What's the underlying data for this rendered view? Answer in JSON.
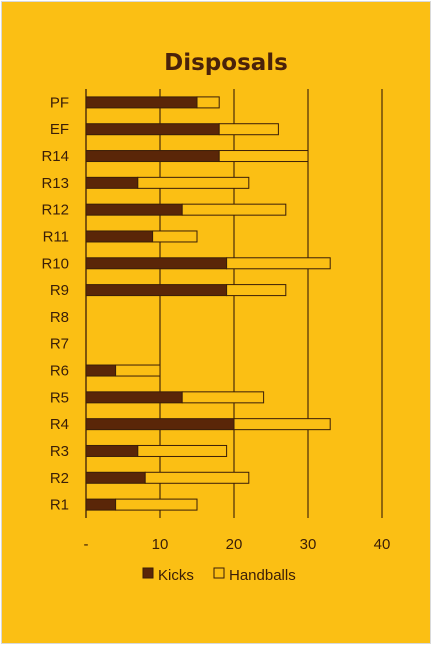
{
  "chart_data": {
    "type": "bar",
    "orientation": "horizontal",
    "stacked": true,
    "title": "Disposals",
    "categories": [
      "PF",
      "EF",
      "R14",
      "R13",
      "R12",
      "R11",
      "R10",
      "R9",
      "R8",
      "R7",
      "R6",
      "R5",
      "R4",
      "R3",
      "R2",
      "R1"
    ],
    "series": [
      {
        "name": "Kicks",
        "color": "#5a2608",
        "values": [
          15,
          18,
          18,
          7,
          13,
          9,
          19,
          19,
          0,
          0,
          4,
          13,
          20,
          7,
          8,
          4
        ]
      },
      {
        "name": "Handballs",
        "color": "#fbbf14",
        "values": [
          3,
          8,
          12,
          15,
          14,
          6,
          14,
          8,
          0,
          0,
          6,
          11,
          13,
          12,
          14,
          11
        ]
      }
    ],
    "x_ticks": [
      "-",
      "10",
      "20",
      "30",
      "40"
    ],
    "xlim": [
      0,
      40
    ],
    "grid": "vertical",
    "legend": "bottom",
    "colors": {
      "background": "#fbbf14",
      "text": "#3a1e08",
      "grid": "#3a1e08",
      "outline": "#3a1e08"
    }
  }
}
